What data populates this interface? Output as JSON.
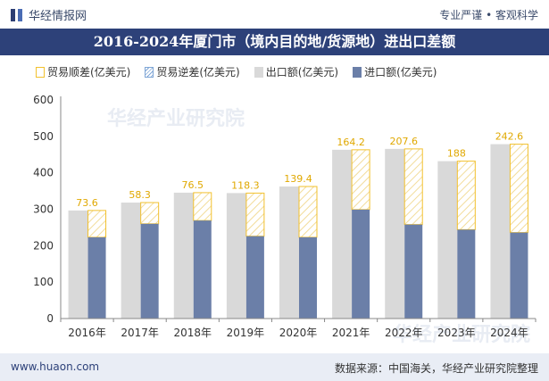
{
  "header": {
    "brand": "华经情报网",
    "tagline": "专业严谨 • 客观科学"
  },
  "chart_data": {
    "type": "bar",
    "title": "2016-2024年厦门市（境内目的地/货源地）进出口差额",
    "categories": [
      "2016年",
      "2017年",
      "2018年",
      "2019年",
      "2020年",
      "2021年",
      "2022年",
      "2023年",
      "2024年"
    ],
    "series": [
      {
        "name": "出口额(亿美元)",
        "values": [
          296.6,
          318.3,
          345.5,
          344.3,
          362.4,
          463.2,
          465.6,
          432.0,
          478.6
        ]
      },
      {
        "name": "进口额(亿美元)",
        "values": [
          223.0,
          260.0,
          269.0,
          226.0,
          223.0,
          299.0,
          258.0,
          244.0,
          236.0
        ]
      },
      {
        "name": "贸易顺差(亿美元)",
        "values": [
          73.6,
          58.3,
          76.5,
          118.3,
          139.4,
          164.2,
          207.6,
          188,
          242.6
        ]
      }
    ],
    "surplus_labels": [
      "73.6",
      "58.3",
      "76.5",
      "118.3",
      "139.4",
      "164.2",
      "207.6",
      "188",
      "242.6"
    ],
    "legend": [
      "贸易顺差(亿美元)",
      "贸易逆差(亿美元)",
      "出口额(亿美元)",
      "进口额(亿美元)"
    ],
    "ylim": [
      0,
      600
    ],
    "yticks": [
      "0",
      "100",
      "200",
      "300",
      "400",
      "500",
      "600"
    ],
    "legend_position": "top",
    "grid": false,
    "colors": {
      "export": "#d9d9d9",
      "import": "#6b7fa8",
      "surplus": "#f2c12e",
      "deficit": "#7fa6d6"
    }
  },
  "watermark": "华经产业研究院",
  "footer": {
    "website": "www.huaon.com",
    "source": "数据来源：中国海关，华经产业研究院整理"
  }
}
